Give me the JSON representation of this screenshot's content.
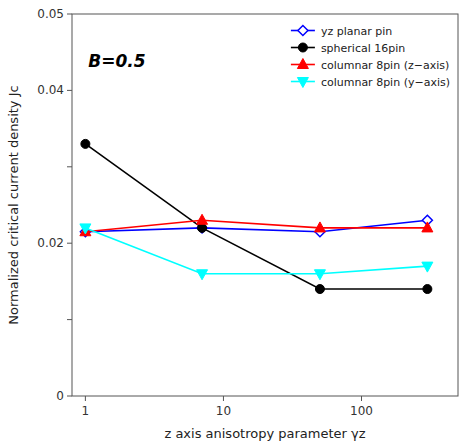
{
  "chart_data": {
    "type": "line",
    "x_label": "z axis anisotropy parameter γz",
    "y_label": "Normalized critical current density Jc",
    "log": "x",
    "x": [
      1,
      7,
      50,
      300
    ],
    "xlim": [
      0.8,
      500
    ],
    "xticks": [
      1,
      10,
      100
    ],
    "ylim": [
      0,
      0.05
    ],
    "yticks": [
      0,
      {
        "value": 0.01,
        "label": null
      },
      0.02,
      {
        "value": 0.03,
        "label": null
      },
      0.04,
      0.05
    ],
    "legend": "top-right",
    "grid": false,
    "series": [
      {
        "name": "yz planar pin",
        "color": "blue",
        "marker": "open-diamond",
        "values": [
          0.0215,
          0.022,
          0.0215,
          0.023
        ]
      },
      {
        "name": "spherical 16pin",
        "color": "black",
        "marker": "circle",
        "values": [
          0.033,
          0.022,
          0.014,
          0.014
        ]
      },
      {
        "name": "columnar 8pin (z−axis)",
        "color": "red",
        "marker": "triangle-up",
        "values": [
          0.0215,
          0.023,
          0.022,
          0.022
        ]
      },
      {
        "name": "columnar 8pin (y−axis)",
        "color": "cyan",
        "marker": "triangle-down",
        "values": [
          0.022,
          0.016,
          0.016,
          0.017
        ]
      }
    ],
    "annotations": [
      {
        "text": "B=0.5",
        "x": 1.05,
        "y": 0.043
      }
    ]
  }
}
